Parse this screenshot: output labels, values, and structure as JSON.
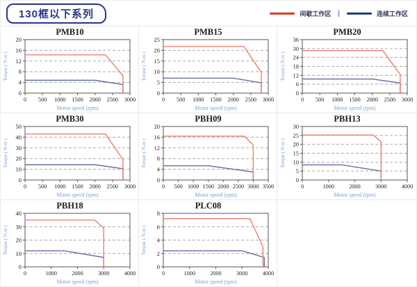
{
  "header": {
    "title": "130框以下系列",
    "legend": {
      "separator": "|",
      "items": [
        {
          "name": "intermittent",
          "label": "间歇工作区",
          "color": "#e0391d"
        },
        {
          "name": "continuous",
          "label": "连续工作区",
          "color": "#1e3c7d"
        }
      ]
    }
  },
  "colors": {
    "intermittent_line": "#ef7d6d",
    "continuous_line": "#5f6fa0",
    "gridline": "#a9a9a9",
    "plot_border": "#555555",
    "tick_text": "#222222",
    "axis_label": "#7aa3d6",
    "header_navy": "#28348a",
    "cell_border": "#e7e7eb"
  },
  "chart_data": [
    {
      "type": "line",
      "title": "PMB10",
      "xlabel": "Motor speed (rpm)",
      "ylabel": "Torque ( N-m )",
      "xlim": [
        0,
        3000
      ],
      "ylim": [
        0,
        20
      ],
      "xticks": [
        0,
        500,
        1000,
        1500,
        2000,
        2500,
        3000
      ],
      "yticks": [
        0,
        4,
        8,
        12,
        16,
        20
      ],
      "grid": "horizontal-dashed",
      "legend_position": "none",
      "series": [
        {
          "name": "间歇工作区",
          "role": "intermittent",
          "points": [
            [
              0,
              14.3
            ],
            [
              2300,
              14.3
            ],
            [
              2800,
              6.5
            ],
            [
              2800,
              0
            ]
          ]
        },
        {
          "name": "连续工作区",
          "role": "continuous",
          "points": [
            [
              0,
              4.8
            ],
            [
              2000,
              4.8
            ],
            [
              2800,
              3.2
            ],
            [
              2800,
              0
            ]
          ]
        }
      ]
    },
    {
      "type": "line",
      "title": "PMB15",
      "xlabel": "Motor speed (rpm)",
      "ylabel": "Torque ( N-m )",
      "xlim": [
        0,
        3000
      ],
      "ylim": [
        0,
        25
      ],
      "xticks": [
        0,
        500,
        1000,
        1500,
        2000,
        2500,
        3000
      ],
      "yticks": [
        0,
        5,
        10,
        15,
        20,
        25
      ],
      "grid": "horizontal-dashed",
      "legend_position": "none",
      "series": [
        {
          "name": "间歇工作区",
          "role": "intermittent",
          "points": [
            [
              0,
              21.8
            ],
            [
              2300,
              21.8
            ],
            [
              2800,
              9.8
            ],
            [
              2800,
              0
            ]
          ]
        },
        {
          "name": "连续工作区",
          "role": "continuous",
          "points": [
            [
              0,
              7
            ],
            [
              2000,
              7
            ],
            [
              2800,
              4.8
            ],
            [
              2800,
              0
            ]
          ]
        }
      ]
    },
    {
      "type": "line",
      "title": "PMB20",
      "xlabel": "Motor speed (rpm)",
      "ylabel": "Torque ( N-m )",
      "xlim": [
        0,
        3000
      ],
      "ylim": [
        0,
        36
      ],
      "xticks": [
        0,
        500,
        1000,
        1500,
        2000,
        2500,
        3000
      ],
      "yticks": [
        0,
        6,
        12,
        18,
        24,
        30,
        36
      ],
      "grid": "horizontal-dashed",
      "legend_position": "none",
      "series": [
        {
          "name": "间歇工作区",
          "role": "intermittent",
          "points": [
            [
              0,
              28.6
            ],
            [
              2300,
              28.6
            ],
            [
              2800,
              12.5
            ],
            [
              2800,
              0
            ]
          ]
        },
        {
          "name": "连续工作区",
          "role": "continuous",
          "points": [
            [
              0,
              9.5
            ],
            [
              2000,
              9.5
            ],
            [
              2800,
              6.8
            ],
            [
              2800,
              0
            ]
          ]
        }
      ]
    },
    {
      "type": "line",
      "title": "PMB30",
      "xlabel": "Motor speed (rpm)",
      "ylabel": "Torque ( N-m )",
      "xlim": [
        0,
        3000
      ],
      "ylim": [
        0,
        50
      ],
      "xticks": [
        0,
        500,
        1000,
        1500,
        2000,
        2500,
        3000
      ],
      "yticks": [
        0,
        10,
        20,
        30,
        40,
        50
      ],
      "grid": "horizontal-dashed",
      "legend_position": "none",
      "series": [
        {
          "name": "间歇工作区",
          "role": "intermittent",
          "points": [
            [
              0,
              43
            ],
            [
              2300,
              43
            ],
            [
              2800,
              19
            ],
            [
              2800,
              0
            ]
          ]
        },
        {
          "name": "连续工作区",
          "role": "continuous",
          "points": [
            [
              0,
              14.3
            ],
            [
              2000,
              14.3
            ],
            [
              2800,
              10.5
            ],
            [
              2800,
              0
            ]
          ]
        }
      ]
    },
    {
      "type": "line",
      "title": "PBH09",
      "xlabel": "Motor speed (rpm)",
      "ylabel": "Torque ( N-m )",
      "xlim": [
        0,
        3500
      ],
      "ylim": [
        0,
        20
      ],
      "xticks": [
        0,
        500,
        1000,
        1500,
        2000,
        2500,
        3000,
        3500
      ],
      "yticks": [
        0,
        4,
        8,
        12,
        16,
        20
      ],
      "grid": "horizontal-dashed",
      "legend_position": "none",
      "series": [
        {
          "name": "间歇工作区",
          "role": "intermittent",
          "points": [
            [
              0,
              16.4
            ],
            [
              2700,
              16.4
            ],
            [
              3000,
              13
            ],
            [
              3000,
              0
            ]
          ]
        },
        {
          "name": "连续工作区",
          "role": "continuous",
          "points": [
            [
              0,
              5.3
            ],
            [
              1500,
              5.3
            ],
            [
              3000,
              3
            ],
            [
              3000,
              0
            ]
          ]
        }
      ]
    },
    {
      "type": "line",
      "title": "PBH13",
      "xlabel": "Motor speed (rpm)",
      "ylabel": "Torque ( N-m )",
      "xlim": [
        0,
        4000
      ],
      "ylim": [
        0,
        30
      ],
      "xticks": [
        0,
        1000,
        2000,
        3000,
        4000
      ],
      "yticks": [
        0,
        5,
        10,
        15,
        20,
        25,
        30
      ],
      "grid": "horizontal-dashed",
      "legend_position": "none",
      "series": [
        {
          "name": "间歇工作区",
          "role": "intermittent",
          "points": [
            [
              0,
              25.2
            ],
            [
              2700,
              25.2
            ],
            [
              3000,
              21.5
            ],
            [
              3000,
              0
            ]
          ]
        },
        {
          "name": "连续工作区",
          "role": "continuous",
          "points": [
            [
              0,
              8.5
            ],
            [
              1500,
              8.5
            ],
            [
              3000,
              5
            ],
            [
              3000,
              0
            ]
          ]
        }
      ]
    },
    {
      "type": "line",
      "title": "PBH18",
      "xlabel": "Motor speed (rpm)",
      "ylabel": "Torque ( N-m )",
      "xlim": [
        0,
        4000
      ],
      "ylim": [
        0,
        40
      ],
      "xticks": [
        0,
        1000,
        2000,
        3000,
        4000
      ],
      "yticks": [
        0,
        10,
        20,
        30,
        40
      ],
      "grid": "horizontal-dashed",
      "legend_position": "none",
      "series": [
        {
          "name": "间歇工作区",
          "role": "intermittent",
          "points": [
            [
              0,
              35
            ],
            [
              2650,
              35
            ],
            [
              3000,
              29
            ],
            [
              3000,
              0
            ]
          ]
        },
        {
          "name": "连续工作区",
          "role": "continuous",
          "points": [
            [
              0,
              12
            ],
            [
              1500,
              12
            ],
            [
              3000,
              7
            ],
            [
              3000,
              0
            ]
          ]
        }
      ]
    },
    {
      "type": "line",
      "title": "PLC08",
      "xlabel": "Motor speed (rpm)",
      "ylabel": "Torque ( N-m )",
      "xlim": [
        0,
        4000
      ],
      "ylim": [
        0,
        8
      ],
      "xticks": [
        0,
        1000,
        2000,
        3000,
        4000
      ],
      "yticks": [
        0,
        2,
        4,
        6,
        8
      ],
      "grid": "horizontal-dashed",
      "legend_position": "none",
      "series": [
        {
          "name": "间歇工作区",
          "role": "intermittent",
          "points": [
            [
              0,
              7.2
            ],
            [
              3300,
              7.2
            ],
            [
              3800,
              3
            ],
            [
              3800,
              0
            ]
          ]
        },
        {
          "name": "连续工作区",
          "role": "continuous",
          "points": [
            [
              0,
              2.4
            ],
            [
              3000,
              2.4
            ],
            [
              3850,
              1.4
            ],
            [
              3850,
              0
            ]
          ]
        }
      ]
    }
  ]
}
